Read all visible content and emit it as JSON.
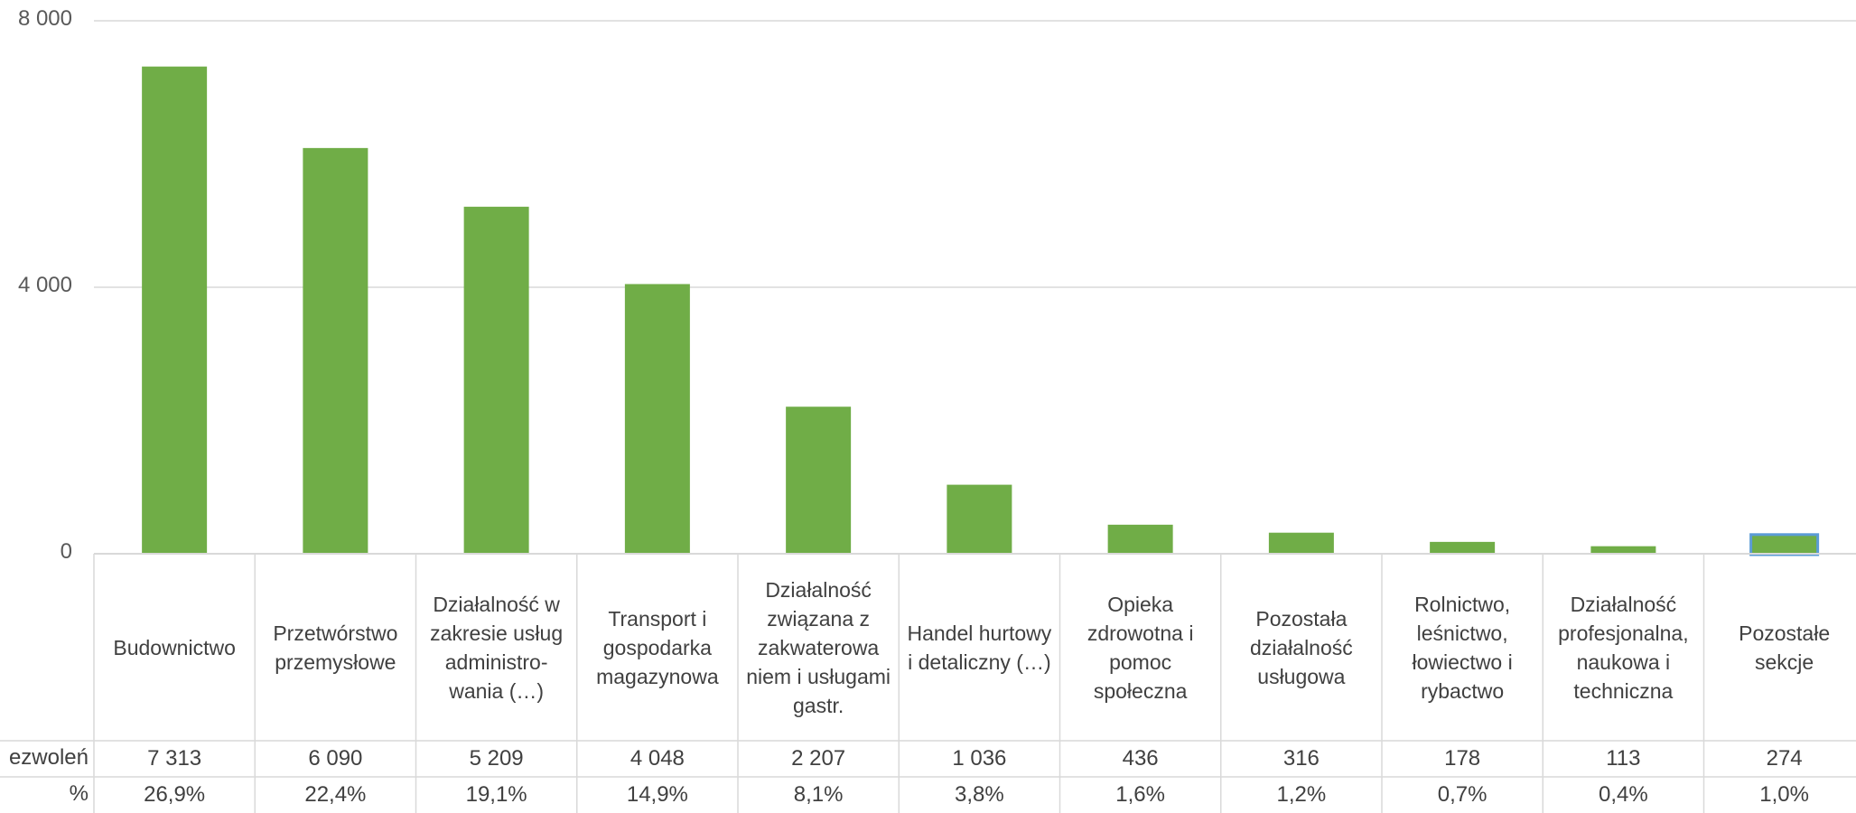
{
  "chart_data": {
    "type": "bar",
    "categories": [
      "Budownictwo",
      "Przetwórstwo przemysłowe",
      "Działalność w zakresie usług administro-wania (…)",
      "Transport i gospodarka magazynowa",
      "Działalność związana z zakwaterowa niem i usługami gastr.",
      "Handel hurtowy i detaliczny (…)",
      "Opieka zdrowotna i pomoc społeczna",
      "Pozostała działalność usługowa",
      "Rolnictwo, leśnictwo, łowiectwo i rybactwo",
      "Działalność profesjonalna, naukowa i techniczna",
      "Pozostałe sekcje"
    ],
    "values": [
      7313,
      6090,
      5209,
      4048,
      2207,
      1036,
      436,
      316,
      178,
      113,
      274
    ],
    "ylim": [
      0,
      8000
    ],
    "yticks": [
      0,
      4000,
      8000
    ],
    "ytick_labels": [
      "0",
      "4 000",
      "8 000"
    ],
    "bar_color": "#70ad47",
    "highlight_index": 10,
    "highlight_color": "#5b9bd5",
    "grid": true,
    "data_table": {
      "rows": [
        {
          "label": "ezwoleń",
          "values": [
            "7 313",
            "6 090",
            "5 209",
            "4 048",
            "2 207",
            "1 036",
            "436",
            "316",
            "178",
            "113",
            "274"
          ]
        },
        {
          "label": "%",
          "values": [
            "26,9%",
            "22,4%",
            "19,1%",
            "14,9%",
            "8,1%",
            "3,8%",
            "1,6%",
            "1,2%",
            "0,7%",
            "0,4%",
            "1,0%"
          ]
        }
      ]
    }
  }
}
